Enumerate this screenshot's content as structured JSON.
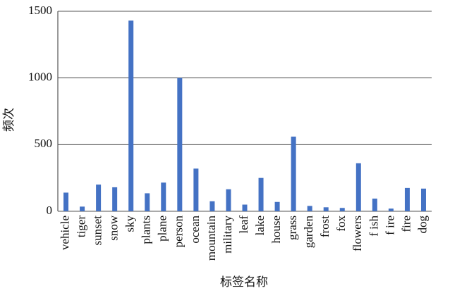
{
  "chart_data": {
    "type": "bar",
    "x_label": "标签名称",
    "y_label": "频次",
    "categories": [
      "vehicle",
      "tiger",
      "sunset",
      "snow",
      "sky",
      "plants",
      "plane",
      "person",
      "ocean",
      "mountain",
      "military",
      "leaf",
      "lake",
      "house",
      "grass",
      "garden",
      "frost",
      "fox",
      "flowers",
      "f ish",
      "f ire",
      "fire",
      "dog"
    ],
    "values": [
      140,
      35,
      200,
      180,
      1430,
      135,
      215,
      1000,
      320,
      75,
      165,
      50,
      250,
      70,
      560,
      40,
      30,
      25,
      360,
      95,
      20,
      175,
      170
    ],
    "color": "#4472c4",
    "ylim": [
      0,
      1500
    ],
    "yticks": [
      0,
      500,
      1000,
      1500
    ],
    "grid": true
  }
}
